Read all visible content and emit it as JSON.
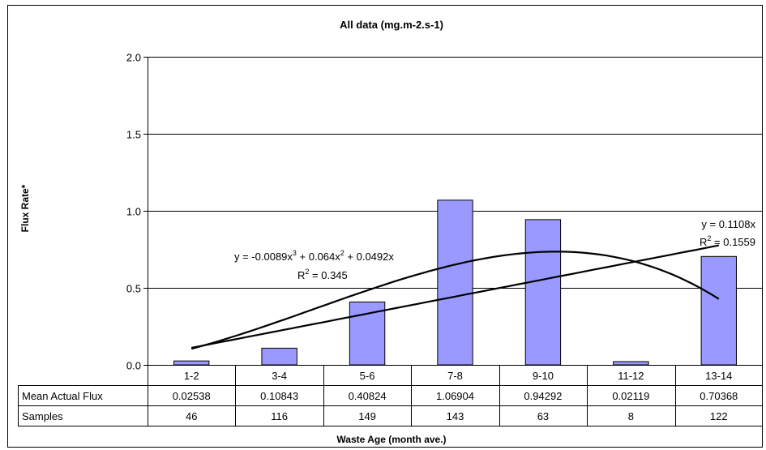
{
  "chart_data": {
    "type": "bar",
    "title": "All data (mg.m-2.s-1)",
    "xlabel": "Waste Age (month ave.)",
    "ylabel": "Flux Rate*",
    "ylim": [
      0,
      2.0
    ],
    "y_ticks": [
      "0.0",
      "0.5",
      "1.0",
      "1.5",
      "2.0"
    ],
    "y_tick_values": [
      0,
      0.5,
      1.0,
      1.5,
      2.0
    ],
    "grid": true,
    "bar_color": "#9999ff",
    "categories": [
      "1-2",
      "3-4",
      "5-6",
      "7-8",
      "9-10",
      "11-12",
      "13-14"
    ],
    "series": [
      {
        "values": [
          0.02538,
          0.10843,
          0.40824,
          1.06904,
          0.94292,
          0.02119,
          0.70368
        ]
      }
    ],
    "data_table": {
      "rows": [
        {
          "label": "Mean Actual Flux",
          "cells": [
            "0.02538",
            "0.10843",
            "0.40824",
            "1.06904",
            "0.94292",
            "0.02119",
            "0.70368"
          ]
        },
        {
          "label": "Samples",
          "cells": [
            "46",
            "116",
            "149",
            "143",
            "63",
            "8",
            "122"
          ]
        }
      ]
    },
    "trendlines": [
      {
        "kind": "polynomial",
        "coefficients": [
          -0.0089,
          0.064,
          0.0492,
          0
        ],
        "x_range": [
          1,
          7
        ],
        "equation_parts": [
          "y = -0.0089x",
          "3",
          " + 0.064x",
          "2",
          " + 0.0492x"
        ],
        "r2_parts": [
          "R",
          "2",
          " = 0.345"
        ]
      },
      {
        "kind": "linear",
        "coefficients": [
          0.1108,
          0
        ],
        "x_range": [
          1,
          7
        ],
        "equation_parts": [
          "y = 0.1108x"
        ],
        "r2_parts": [
          "R",
          "2",
          " = 0.1559"
        ]
      }
    ]
  }
}
